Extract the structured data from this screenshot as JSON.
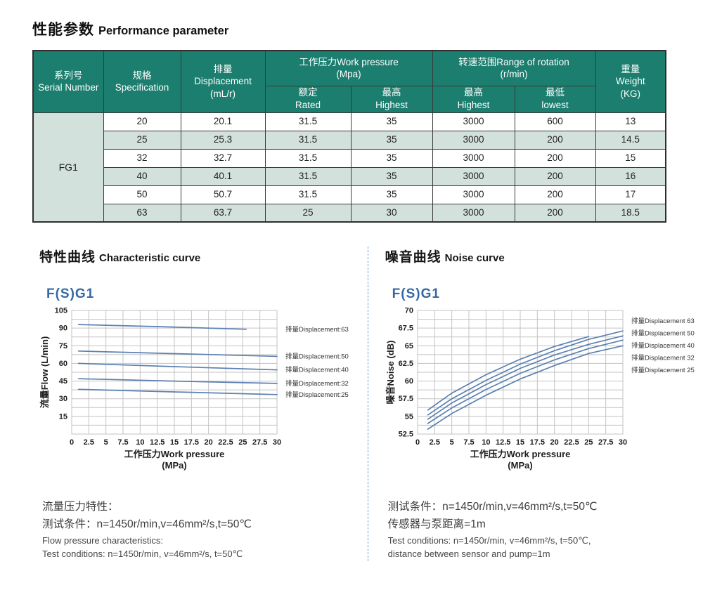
{
  "page_title": {
    "cjk": "性能参数",
    "en": "Performance parameter"
  },
  "colors": {
    "header_teal": "#1b7e6e",
    "row_stripe": "#d3e1dd",
    "chart_line": "#5b80b2",
    "grid_gray": "#c3c3c3",
    "accent_blue": "#3568a6",
    "divider_blue": "#6f9fd8"
  },
  "table": {
    "serial_label": "FG1",
    "headers": {
      "serial": {
        "l1": "系列号",
        "l2": "Serial Number"
      },
      "spec": {
        "l1": "规格",
        "l2": "Specification"
      },
      "disp": {
        "l1": "排量",
        "l2": "Displacement",
        "l3": "(mL/r)"
      },
      "work_pressure": {
        "l1": "工作压力Work pressure",
        "l2": "(Mpa)"
      },
      "rotation": {
        "l1": "转速范围Range of rotation",
        "l2": "(r/min)"
      },
      "weight": {
        "l1": "重量",
        "l2": "Weight",
        "l3": "(KG)"
      },
      "rated": {
        "l1": "额定",
        "l2": "Rated"
      },
      "highest_p": {
        "l1": "最高",
        "l2": "Highest"
      },
      "highest_r": {
        "l1": "最高",
        "l2": "Highest"
      },
      "lowest_r": {
        "l1": "最低",
        "l2": "lowest"
      }
    },
    "rows": [
      [
        "20",
        "20.1",
        "31.5",
        "35",
        "3000",
        "600",
        "13"
      ],
      [
        "25",
        "25.3",
        "31.5",
        "35",
        "3000",
        "200",
        "14.5"
      ],
      [
        "32",
        "32.7",
        "31.5",
        "35",
        "3000",
        "200",
        "15"
      ],
      [
        "40",
        "40.1",
        "31.5",
        "35",
        "3000",
        "200",
        "16"
      ],
      [
        "50",
        "50.7",
        "31.5",
        "35",
        "3000",
        "200",
        "17"
      ],
      [
        "63",
        "63.7",
        "25",
        "30",
        "3000",
        "200",
        "18.5"
      ]
    ]
  },
  "sections": [
    {
      "title_cjk": "特性曲线",
      "title_en": "Characteristic curve",
      "chart_label": "F(S)G1",
      "notes_cjk": [
        "流量压力特性：",
        "测试条件：n=1450r/min,v=46mm²/s,t=50℃"
      ],
      "notes_en": [
        "Flow pressure characteristics:",
        "Test conditions: n=1450r/min, v=46mm²/s, t=50℃"
      ]
    },
    {
      "title_cjk": "噪音曲线",
      "title_en": "Noise curve",
      "chart_label": "F(S)G1",
      "notes_cjk": [
        "测试条件：n=1450r/min,v=46mm²/s,t=50℃",
        "传感器与泵距离=1m"
      ],
      "notes_en": [
        "Test conditions: n=1450r/min, v=46mm²/s, t=50℃,",
        "distance between sensor and pump=1m"
      ]
    }
  ],
  "chart_data": [
    {
      "id": "characteristic",
      "type": "line",
      "title": "F(S)G1",
      "xlabel": "工作压力Work pressure",
      "xlabel_unit": "(MPa)",
      "ylabel": "流量Flow (L/min)",
      "xlim": [
        0,
        30
      ],
      "ylim": [
        0,
        105
      ],
      "xticks": [
        0,
        2.5,
        5,
        7.5,
        10,
        12.5,
        15,
        17.5,
        20,
        22.5,
        25,
        27.5,
        30
      ],
      "yticks": [
        15,
        30,
        45,
        60,
        75,
        90,
        105
      ],
      "grid_x_step": 2.5,
      "grid_y_step": 7.5,
      "grid": true,
      "legend_position": "line-end",
      "series": [
        {
          "name": "排量Displacement:63",
          "points": [
            [
              1,
              93
            ],
            [
              13,
              91.2
            ],
            [
              25.5,
              89
            ]
          ]
        },
        {
          "name": "排量Displacement:50",
          "points": [
            [
              1,
              70.5
            ],
            [
              15,
              68.3
            ],
            [
              30,
              66
            ]
          ]
        },
        {
          "name": "排量Displacement:40",
          "points": [
            [
              1,
              60
            ],
            [
              15,
              57.3
            ],
            [
              30,
              54.5
            ]
          ]
        },
        {
          "name": "排量Displacement:32",
          "points": [
            [
              1,
              47
            ],
            [
              15,
              45
            ],
            [
              30,
              43
            ]
          ]
        },
        {
          "name": "排量Displacement:25",
          "points": [
            [
              1,
              38
            ],
            [
              15,
              35.8
            ],
            [
              30,
              33.5
            ]
          ]
        }
      ]
    },
    {
      "id": "noise",
      "type": "line",
      "title": "F(S)G1",
      "xlabel": "工作压力Work pressure",
      "xlabel_unit": "(MPa)",
      "ylabel": "噪音Noise (dB)",
      "xlim": [
        0,
        30
      ],
      "ylim": [
        52.5,
        70
      ],
      "xticks": [
        0,
        2.5,
        5,
        7.5,
        10,
        12.5,
        15,
        17.5,
        20,
        22.5,
        25,
        27.5,
        30
      ],
      "yticks": [
        52.5,
        55,
        57.5,
        60,
        62.5,
        65,
        67.5,
        70
      ],
      "grid_x_step": 2.5,
      "grid_y_step": 1.25,
      "grid": true,
      "legend_position": "stacked-top-right",
      "series": [
        {
          "name": "排量Displacement 63",
          "points": [
            [
              1.5,
              55.9
            ],
            [
              5,
              58.3
            ],
            [
              10,
              60.9
            ],
            [
              15,
              63.1
            ],
            [
              20,
              64.9
            ],
            [
              25,
              66.3
            ]
          ]
        },
        {
          "name": "排量Displacement 50",
          "points": [
            [
              1.5,
              55.2
            ],
            [
              5,
              57.5
            ],
            [
              10,
              60.1
            ],
            [
              15,
              62.4
            ],
            [
              20,
              64.3
            ],
            [
              25,
              65.9
            ],
            [
              30,
              67.1
            ]
          ]
        },
        {
          "name": "排量Displacement 40",
          "points": [
            [
              1.5,
              54.6
            ],
            [
              5,
              56.9
            ],
            [
              10,
              59.5
            ],
            [
              15,
              61.8
            ],
            [
              20,
              63.7
            ],
            [
              25,
              65.2
            ],
            [
              30,
              66.4
            ]
          ]
        },
        {
          "name": "排量Displacement 32",
          "points": [
            [
              1.5,
              54.0
            ],
            [
              5,
              56.2
            ],
            [
              10,
              58.8
            ],
            [
              15,
              61.1
            ],
            [
              20,
              63.0
            ],
            [
              25,
              64.6
            ],
            [
              30,
              65.8
            ]
          ]
        },
        {
          "name": "排量Displacement 25",
          "points": [
            [
              1.5,
              53.2
            ],
            [
              5,
              55.4
            ],
            [
              10,
              58.0
            ],
            [
              15,
              60.3
            ],
            [
              20,
              62.2
            ],
            [
              25,
              63.9
            ],
            [
              30,
              65.0
            ]
          ]
        }
      ]
    }
  ]
}
